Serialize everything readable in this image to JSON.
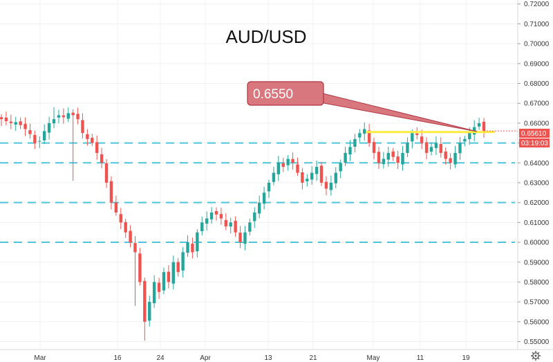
{
  "chart_data": {
    "type": "candlestick",
    "title": "AUD/USD",
    "ylim": [
      0.546,
      0.722
    ],
    "y_ticks": [
      "0.72000",
      "0.71000",
      "0.70000",
      "0.69000",
      "0.68000",
      "0.67000",
      "0.66000",
      "0.65000",
      "0.64000",
      "0.63000",
      "0.62000",
      "0.61000",
      "0.60000",
      "0.59000",
      "0.58000",
      "0.57000",
      "0.56000",
      "0.55000"
    ],
    "y_tick_values": [
      0.72,
      0.71,
      0.7,
      0.69,
      0.68,
      0.67,
      0.66,
      0.65,
      0.64,
      0.63,
      0.62,
      0.61,
      0.6,
      0.59,
      0.58,
      0.57,
      0.56,
      0.55
    ],
    "x_labels": [
      "Mar",
      "16",
      "24",
      "Apr",
      "13",
      "21",
      "May",
      "11",
      "19"
    ],
    "current_price": "0.65610",
    "countdown": "03:19:03",
    "callout": "0.6550",
    "resistance_level": 0.6555,
    "horizontal_levels": [
      0.65,
      0.64,
      0.62,
      0.6
    ],
    "up_color": "#26a69a",
    "down_color": "#ef5350",
    "level_color": "#4fc3d9",
    "resistance_color": "#ffeb3b",
    "price_tag_color": "#ef5350",
    "callout_color": "#d9777f",
    "close_path": [
      0.662,
      0.661,
      0.66,
      0.6605,
      0.659,
      0.657,
      0.6545,
      0.65,
      0.651,
      0.656,
      0.66,
      0.662,
      0.664,
      0.663,
      0.665,
      0.664,
      0.662,
      0.655,
      0.652,
      0.65,
      0.645,
      0.64,
      0.63,
      0.62,
      0.615,
      0.61,
      0.605,
      0.6,
      0.595,
      0.58,
      0.56,
      0.57,
      0.58,
      0.575,
      0.585,
      0.58,
      0.59,
      0.585,
      0.595,
      0.6,
      0.595,
      0.605,
      0.61,
      0.612,
      0.615,
      0.614,
      0.612,
      0.608,
      0.61,
      0.605,
      0.6,
      0.605,
      0.61,
      0.615,
      0.62,
      0.625,
      0.63,
      0.635,
      0.64,
      0.638,
      0.642,
      0.64,
      0.635,
      0.63,
      0.632,
      0.635,
      0.638,
      0.63,
      0.627,
      0.63,
      0.635,
      0.64,
      0.645,
      0.648,
      0.652,
      0.655,
      0.657,
      0.65,
      0.645,
      0.64,
      0.642,
      0.645,
      0.643,
      0.64,
      0.645,
      0.65,
      0.655,
      0.654,
      0.65,
      0.645,
      0.648,
      0.65,
      0.645,
      0.642,
      0.64,
      0.645,
      0.65,
      0.652,
      0.655,
      0.658,
      0.66,
      0.6561
    ]
  }
}
